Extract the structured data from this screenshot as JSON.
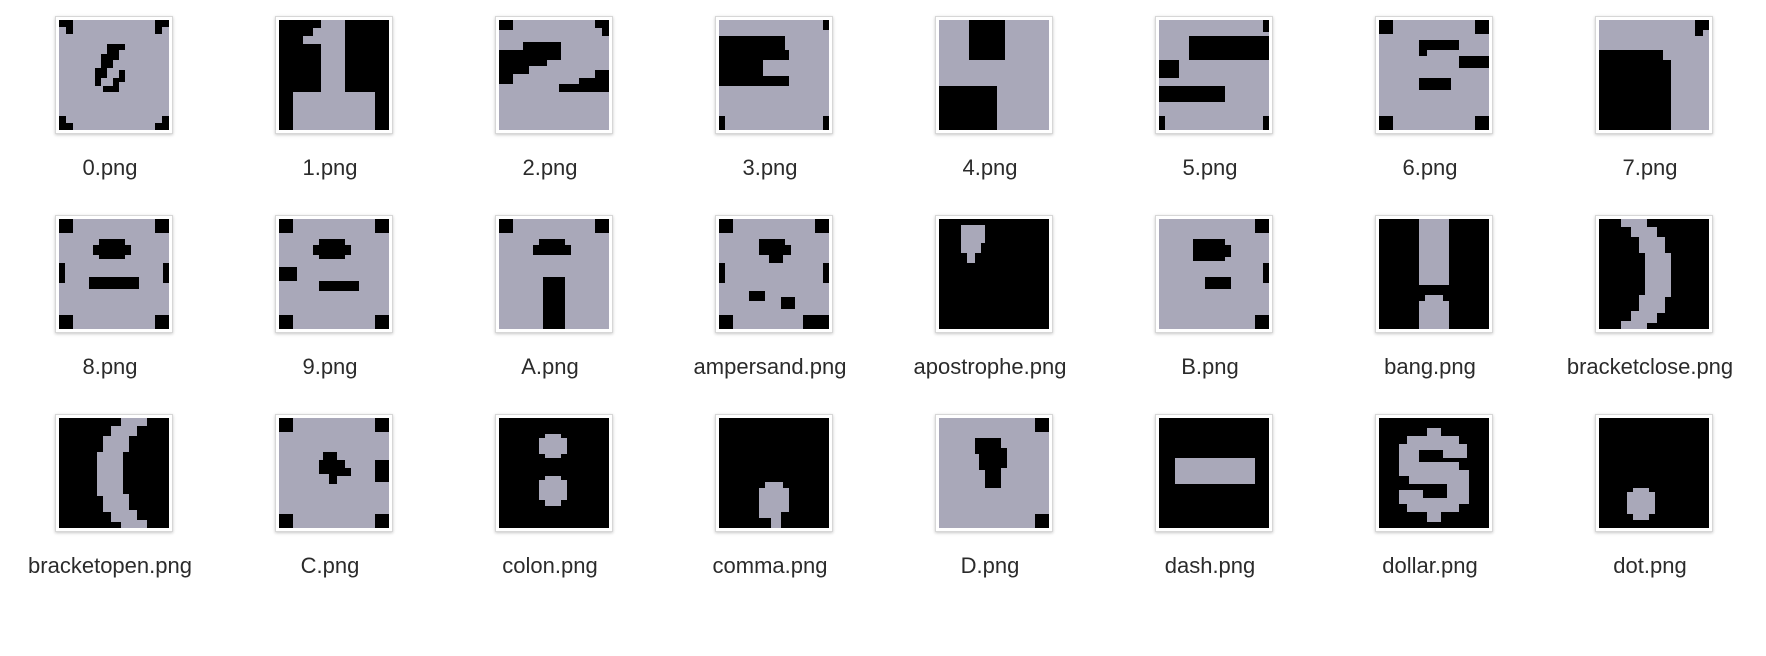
{
  "colors": {
    "glyph": "#a9a8b9",
    "background": "#000000",
    "label": "#2b2b2b"
  },
  "files": [
    {
      "name": "0.png",
      "icon": "zero-thumbnail-icon"
    },
    {
      "name": "1.png",
      "icon": "one-thumbnail-icon"
    },
    {
      "name": "2.png",
      "icon": "two-thumbnail-icon"
    },
    {
      "name": "3.png",
      "icon": "three-thumbnail-icon"
    },
    {
      "name": "4.png",
      "icon": "four-thumbnail-icon"
    },
    {
      "name": "5.png",
      "icon": "five-thumbnail-icon"
    },
    {
      "name": "6.png",
      "icon": "six-thumbnail-icon"
    },
    {
      "name": "7.png",
      "icon": "seven-thumbnail-icon"
    },
    {
      "name": "8.png",
      "icon": "eight-thumbnail-icon"
    },
    {
      "name": "9.png",
      "icon": "nine-thumbnail-icon"
    },
    {
      "name": "A.png",
      "icon": "letter-a-thumbnail-icon"
    },
    {
      "name": "ampersand.png",
      "icon": "ampersand-thumbnail-icon"
    },
    {
      "name": "apostrophe.png",
      "icon": "apostrophe-thumbnail-icon"
    },
    {
      "name": "B.png",
      "icon": "letter-b-thumbnail-icon"
    },
    {
      "name": "bang.png",
      "icon": "exclamation-thumbnail-icon"
    },
    {
      "name": "bracketclose.png",
      "icon": "bracket-close-thumbnail-icon"
    },
    {
      "name": "bracketopen.png",
      "icon": "bracket-open-thumbnail-icon"
    },
    {
      "name": "C.png",
      "icon": "letter-c-thumbnail-icon"
    },
    {
      "name": "colon.png",
      "icon": "colon-thumbnail-icon"
    },
    {
      "name": "comma.png",
      "icon": "comma-thumbnail-icon"
    },
    {
      "name": "D.png",
      "icon": "letter-d-thumbnail-icon"
    },
    {
      "name": "dash.png",
      "icon": "dash-thumbnail-icon"
    },
    {
      "name": "dollar.png",
      "icon": "dollar-thumbnail-icon"
    },
    {
      "name": "dot.png",
      "icon": "dot-thumbnail-icon"
    }
  ]
}
